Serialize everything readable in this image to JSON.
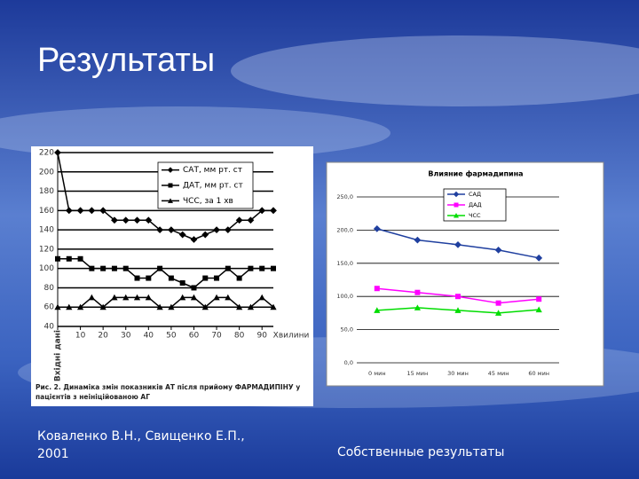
{
  "title": "Результаты",
  "captions": [
    "Коваленко В.Н., Свищенко Е.П., 2001",
    "Собственные результаты"
  ],
  "chart_data": [
    {
      "type": "line",
      "caption": "Рис. 2. Динаміка змін показників АТ після прийому ФАРМАДИПІНУ у пацієнтів з неініційованою АГ",
      "x_label": "Хвилини",
      "x": [
        0,
        5,
        10,
        15,
        20,
        25,
        30,
        35,
        40,
        45,
        50,
        55,
        60,
        65,
        70,
        75,
        80,
        85,
        90,
        95
      ],
      "xlim": [
        0,
        95
      ],
      "xticks": [
        {
          "value": 0,
          "label": "Вхідні дані"
        },
        10,
        20,
        30,
        40,
        50,
        60,
        70,
        80,
        90
      ],
      "ylim": [
        40,
        220
      ],
      "yticks": [
        40,
        60,
        80,
        100,
        120,
        140,
        160,
        180,
        200,
        220
      ],
      "grid": true,
      "series": [
        {
          "name": "САТ, мм рт. ст",
          "color": "#000000",
          "marker": "diamond",
          "values": [
            220,
            160,
            160,
            160,
            160,
            150,
            150,
            150,
            150,
            140,
            140,
            135,
            130,
            135,
            140,
            140,
            150,
            150,
            160,
            160
          ]
        },
        {
          "name": "ДАТ, мм рт. ст",
          "color": "#000000",
          "marker": "square",
          "values": [
            110,
            110,
            110,
            100,
            100,
            100,
            100,
            90,
            90,
            100,
            90,
            85,
            80,
            90,
            90,
            100,
            90,
            100,
            100,
            100
          ]
        },
        {
          "name": "ЧСС, за 1 хв",
          "color": "#000000",
          "marker": "triangle",
          "values": [
            60,
            60,
            60,
            70,
            60,
            70,
            70,
            70,
            70,
            60,
            60,
            70,
            70,
            60,
            70,
            70,
            60,
            60,
            70,
            60
          ]
        }
      ]
    },
    {
      "type": "line",
      "title": "Влияние фармадипина",
      "categories": [
        "0 мин",
        "15 мин",
        "30 мин",
        "45 мин",
        "60 мин"
      ],
      "ylim": [
        0,
        250
      ],
      "yticks": [
        {
          "value": 0,
          "label": "0,0"
        },
        {
          "value": 50,
          "label": "50,0"
        },
        {
          "value": 100,
          "label": "100,0"
        },
        {
          "value": 150,
          "label": "150,0"
        },
        {
          "value": 200,
          "label": "200,0"
        },
        {
          "value": 250,
          "label": "250,0"
        }
      ],
      "grid": true,
      "series": [
        {
          "name": "САД",
          "color": "#1f3f9f",
          "marker": "diamond",
          "values": [
            202,
            185,
            178,
            170,
            158
          ]
        },
        {
          "name": "ДАД",
          "color": "#ff00ff",
          "marker": "square",
          "values": [
            112,
            106,
            100,
            90,
            96
          ]
        },
        {
          "name": "ЧСС",
          "color": "#00dd00",
          "marker": "triangle",
          "values": [
            79,
            83,
            79,
            75,
            80
          ]
        }
      ]
    }
  ]
}
